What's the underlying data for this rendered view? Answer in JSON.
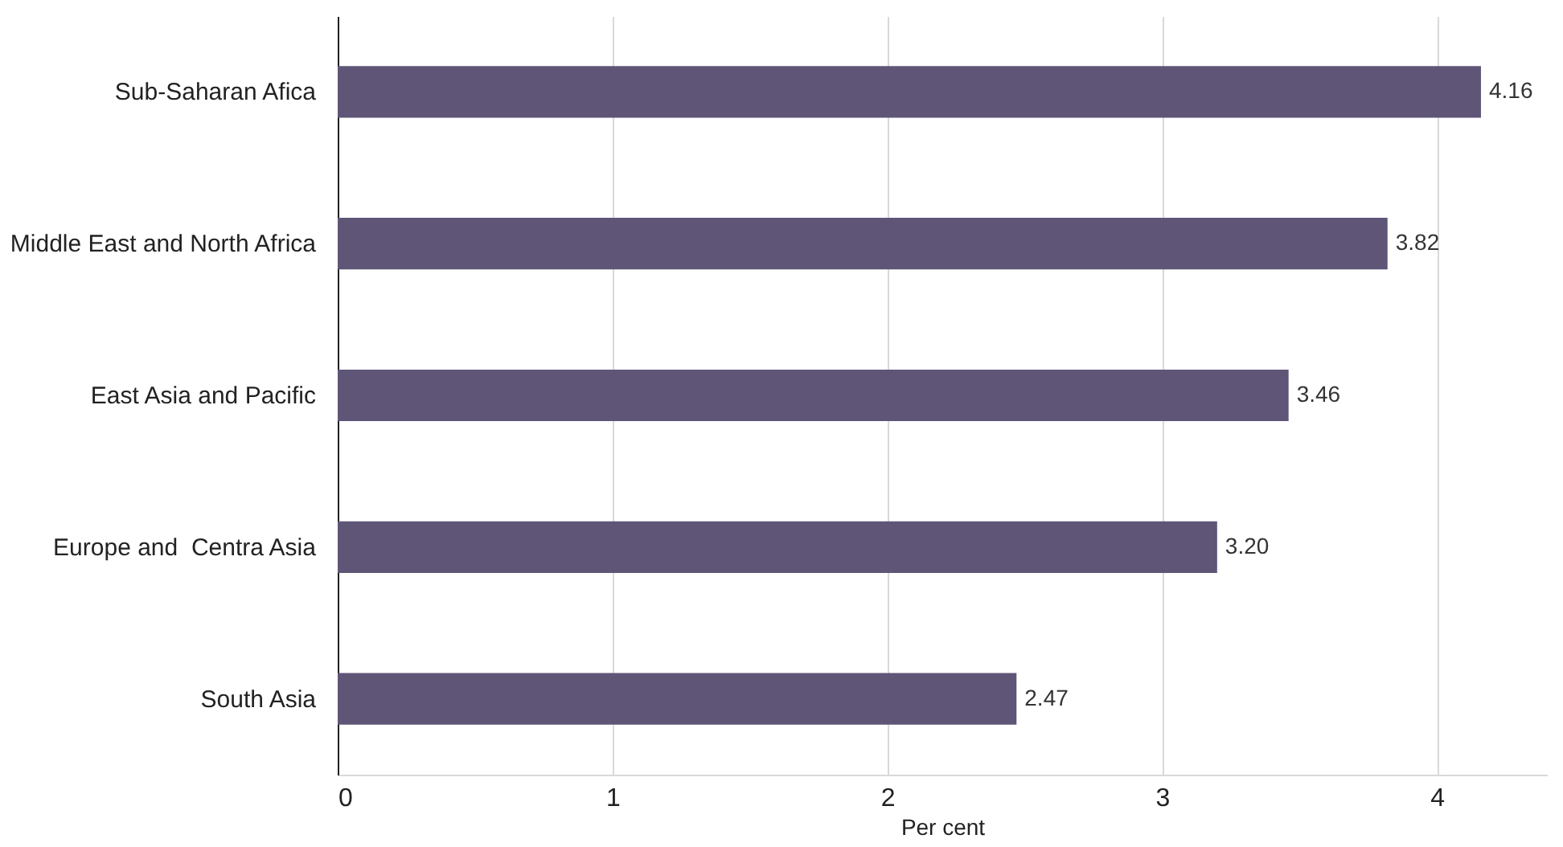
{
  "chart_data": {
    "type": "bar",
    "orientation": "horizontal",
    "categories": [
      "Sub-Saharan Afica",
      "Middle East and North Africa",
      "East Asia and Pacific",
      "Europe and  Centra Asia",
      "South Asia"
    ],
    "values": [
      4.16,
      3.82,
      3.46,
      3.2,
      2.47
    ],
    "value_labels": [
      "4.16",
      "3.82",
      "3.46",
      "3.20",
      "2.47"
    ],
    "color": "#5e5577",
    "xlim": [
      0,
      4.4
    ],
    "xticks": [
      0,
      1,
      2,
      3,
      4
    ],
    "xlabel": "Per cent",
    "grid": "x"
  }
}
